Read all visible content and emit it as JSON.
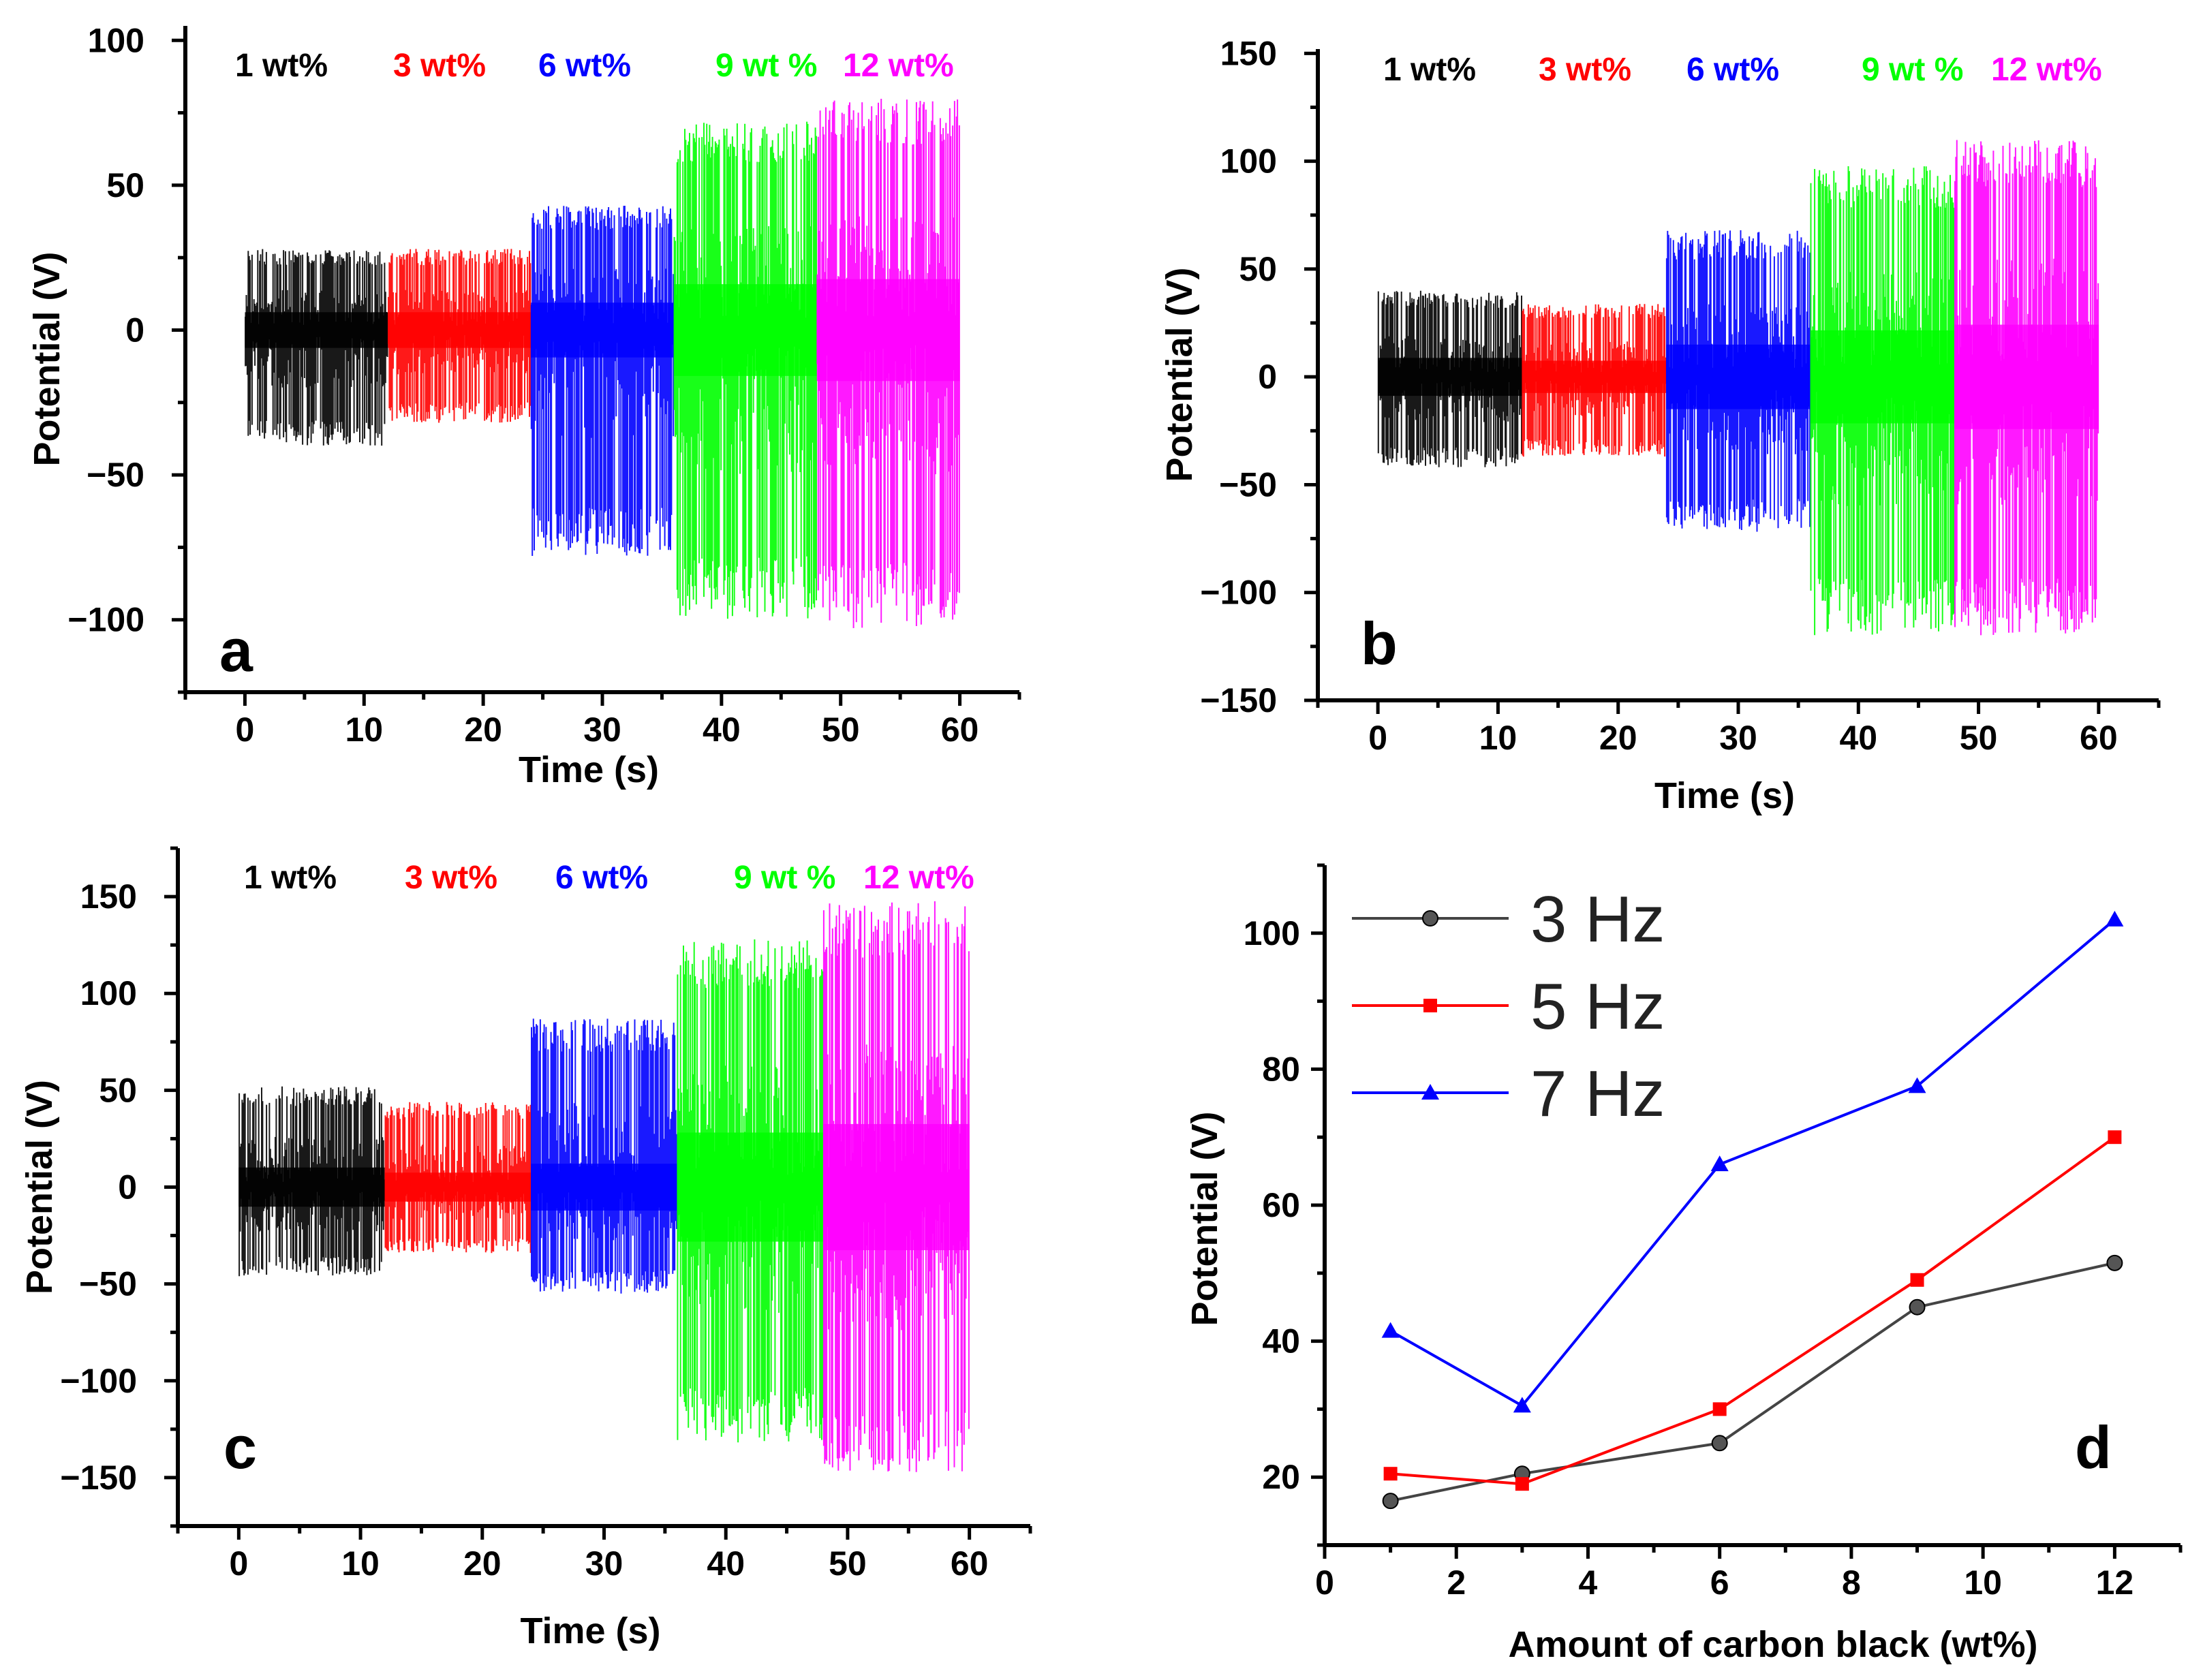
{
  "colors": {
    "c1": "#000000",
    "c3": "#ff0000",
    "c6": "#0000ff",
    "c9": "#00ff00",
    "c12": "#ff00ff",
    "d3": "#444444",
    "d5": "#ff0000",
    "d7": "#0000ff"
  },
  "chart_data": [
    {
      "type": "line",
      "panel": "a",
      "xlabel": "Time (s)",
      "ylabel": "Potential (V)",
      "xlim": [
        -5,
        65
      ],
      "ylim": [
        -125,
        105
      ],
      "xticks": [
        0,
        10,
        20,
        30,
        40,
        50,
        60
      ],
      "yticks": [
        -100,
        -50,
        0,
        50,
        100
      ],
      "ytick_labels": [
        "−100",
        "−50",
        "0",
        "50",
        "100"
      ],
      "segments": [
        {
          "label": "1 wt%",
          "color_key": "c1",
          "t_start": 0,
          "t_end": 12,
          "max": 28,
          "min": -40
        },
        {
          "label": "3 wt%",
          "color_key": "c3",
          "t_start": 12,
          "t_end": 24,
          "max": 28,
          "min": -32
        },
        {
          "label": "6  wt%",
          "color_key": "c6",
          "t_start": 24,
          "t_end": 36,
          "max": 43,
          "min": -78
        },
        {
          "label": "9 wt %",
          "color_key": "c9",
          "t_start": 36,
          "t_end": 48,
          "max": 72,
          "min": -100
        },
        {
          "label": "12 wt%",
          "color_key": "c12",
          "t_start": 48,
          "t_end": 60,
          "max": 80,
          "min": -103
        }
      ]
    },
    {
      "type": "line",
      "panel": "b",
      "xlabel": "Time (s)",
      "ylabel": "Potential (V)",
      "xlim": [
        -5,
        65
      ],
      "ylim": [
        -150,
        152
      ],
      "xticks": [
        0,
        10,
        20,
        30,
        40,
        50,
        60
      ],
      "yticks": [
        -150,
        -100,
        -50,
        0,
        50,
        100,
        150
      ],
      "ytick_labels": [
        "−150",
        "−100",
        "−50",
        "0",
        "50",
        "100",
        "150"
      ],
      "segments": [
        {
          "label": "1 wt%",
          "color_key": "c1",
          "t_start": 0,
          "t_end": 12,
          "max": 40,
          "min": -42
        },
        {
          "label": "3 wt%",
          "color_key": "c3",
          "t_start": 12,
          "t_end": 24,
          "max": 34,
          "min": -37
        },
        {
          "label": "6  wt%",
          "color_key": "c6",
          "t_start": 24,
          "t_end": 36,
          "max": 68,
          "min": -72
        },
        {
          "label": "9 wt %",
          "color_key": "c9",
          "t_start": 36,
          "t_end": 48,
          "max": 98,
          "min": -120
        },
        {
          "label": "12 wt%",
          "color_key": "c12",
          "t_start": 48,
          "t_end": 60,
          "max": 110,
          "min": -120
        }
      ]
    },
    {
      "type": "line",
      "panel": "c",
      "xlabel": "Time (s)",
      "ylabel": "Potential (V)",
      "xlim": [
        -5,
        65
      ],
      "ylim": [
        -175,
        175
      ],
      "xticks": [
        0,
        10,
        20,
        30,
        40,
        50,
        60
      ],
      "yticks": [
        -150,
        -100,
        -50,
        0,
        50,
        100,
        150
      ],
      "ytick_labels": [
        "−150",
        "−100",
        "−50",
        "0",
        "50",
        "100",
        "150"
      ],
      "segments": [
        {
          "label": "1 wt%",
          "color_key": "c1",
          "t_start": 0,
          "t_end": 12,
          "max": 52,
          "min": -46
        },
        {
          "label": "3 wt%",
          "color_key": "c3",
          "t_start": 12,
          "t_end": 24,
          "max": 44,
          "min": -34
        },
        {
          "label": "6  wt%",
          "color_key": "c6",
          "t_start": 24,
          "t_end": 36,
          "max": 87,
          "min": -55
        },
        {
          "label": "9 wt %",
          "color_key": "c9",
          "t_start": 36,
          "t_end": 48,
          "max": 128,
          "min": -133
        },
        {
          "label": "12 wt%",
          "color_key": "c12",
          "t_start": 48,
          "t_end": 60,
          "max": 148,
          "min": -148
        }
      ]
    },
    {
      "type": "line",
      "panel": "d",
      "xlabel": "Amount of carbon black (wt%)",
      "ylabel": "Potential (V)",
      "xlim": [
        0,
        13
      ],
      "ylim": [
        10,
        110
      ],
      "xticks": [
        0,
        2,
        4,
        6,
        8,
        10,
        12
      ],
      "yticks": [
        20,
        40,
        60,
        80,
        100
      ],
      "x": [
        1,
        3,
        6,
        9,
        12
      ],
      "series": [
        {
          "name": "3 Hz",
          "marker": "circle",
          "color_key": "d3",
          "values": [
            16.5,
            20.5,
            25,
            45,
            51.5
          ]
        },
        {
          "name": "5 Hz",
          "marker": "square",
          "color_key": "d5",
          "values": [
            20.5,
            19,
            30,
            49,
            70
          ]
        },
        {
          "name": "7 Hz",
          "marker": "triangle",
          "color_key": "d7",
          "values": [
            41.5,
            30.5,
            66,
            77.5,
            102
          ]
        }
      ],
      "legend": "top-left"
    }
  ]
}
